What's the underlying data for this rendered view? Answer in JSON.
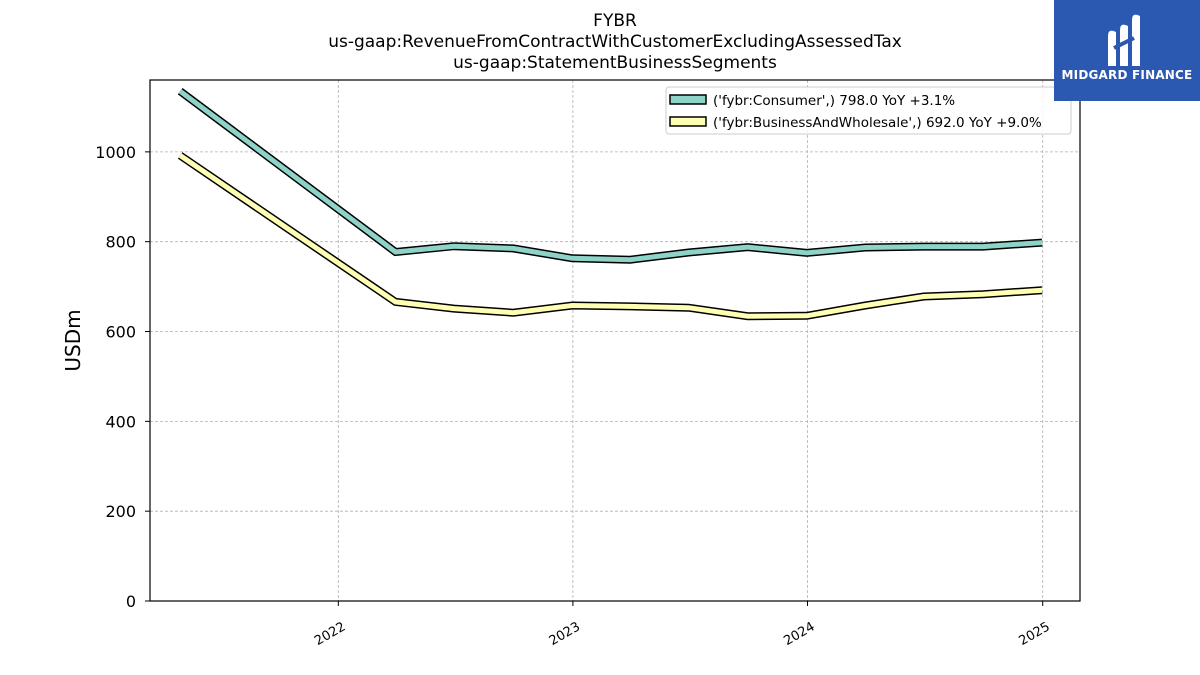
{
  "header": {
    "title": "FYBR",
    "subtitle1": "us-gaap:RevenueFromContractWithCustomerExcludingAssessedTax",
    "subtitle2": "us-gaap:StatementBusinessSegments"
  },
  "logo": {
    "text": "MIDGARD FINANCE",
    "background": "#2b58b0"
  },
  "chart_data": {
    "type": "line",
    "ylabel": "USDm",
    "ylim": [
      0,
      1160
    ],
    "yticks": [
      0,
      200,
      400,
      600,
      800,
      1000
    ],
    "xticks": [
      "2022",
      "2023",
      "2024",
      "2025"
    ],
    "xlim": [
      "2021-03-14",
      "2025-02-28"
    ],
    "grid": true,
    "legend_position": "top-right",
    "x": [
      "2021-04-30",
      "2022-03-31",
      "2022-06-30",
      "2022-09-30",
      "2022-12-31",
      "2023-03-31",
      "2023-06-30",
      "2023-09-30",
      "2023-12-31",
      "2024-03-31",
      "2024-06-30",
      "2024-09-30",
      "2024-12-31"
    ],
    "series": [
      {
        "name": "('fybr:Consumer',) 798.0 YoY +3.1%",
        "color": "#8dd3c7",
        "values": [
          1135,
          777,
          790,
          785,
          763,
          760,
          776,
          788,
          775,
          787,
          789,
          789,
          798
        ]
      },
      {
        "name": "('fybr:BusinessAndWholesale',) 692.0 YoY +9.0%",
        "color": "#ffffb3",
        "values": [
          992,
          666,
          651,
          642,
          658,
          656,
          653,
          634,
          635,
          658,
          678,
          683,
          692
        ]
      }
    ]
  }
}
